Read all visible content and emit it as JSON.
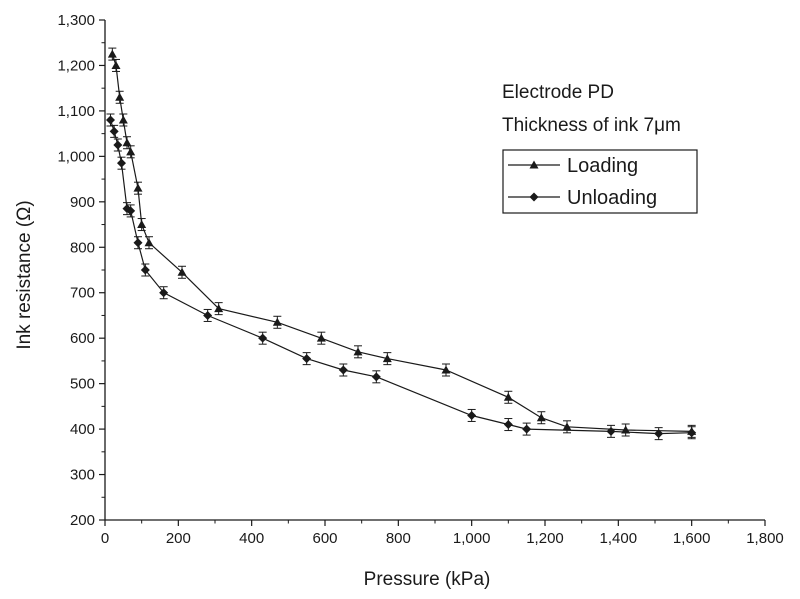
{
  "chart_data": {
    "type": "line",
    "title": "",
    "xlabel": "Pressure (kPa)",
    "ylabel": "Ink resistance (Ω)",
    "xlim": [
      0,
      1800
    ],
    "ylim": [
      200,
      1300
    ],
    "x_ticks": [
      "0",
      "200",
      "400",
      "600",
      "800",
      "1,000",
      "1,200",
      "1,400",
      "1,600",
      "1,800"
    ],
    "y_ticks": [
      "200",
      "300",
      "400",
      "500",
      "600",
      "700",
      "800",
      "900",
      "1,000",
      "1,100",
      "1,200",
      "1,300"
    ],
    "grid": false,
    "legend_position": "top-right",
    "annotations": [
      "Electrode PD",
      "Thickness of ink 7μm"
    ],
    "series": [
      {
        "name": "Loading",
        "marker": "triangle",
        "color": "#1a1a1a",
        "x": [
          20,
          30,
          40,
          50,
          60,
          70,
          90,
          100,
          120,
          210,
          310,
          470,
          590,
          690,
          770,
          930,
          1100,
          1190,
          1260,
          1420,
          1600
        ],
        "y": [
          1225,
          1200,
          1130,
          1080,
          1030,
          1010,
          930,
          850,
          810,
          745,
          665,
          635,
          600,
          570,
          555,
          530,
          470,
          425,
          405,
          398,
          395
        ]
      },
      {
        "name": "Unloading",
        "marker": "diamond",
        "color": "#1a1a1a",
        "x": [
          15,
          25,
          35,
          45,
          60,
          70,
          90,
          110,
          160,
          280,
          430,
          550,
          650,
          740,
          1000,
          1100,
          1150,
          1380,
          1510,
          1600
        ],
        "y": [
          1080,
          1055,
          1025,
          985,
          885,
          880,
          810,
          750,
          700,
          650,
          600,
          555,
          530,
          515,
          430,
          410,
          400,
          395,
          390,
          392
        ]
      }
    ]
  }
}
